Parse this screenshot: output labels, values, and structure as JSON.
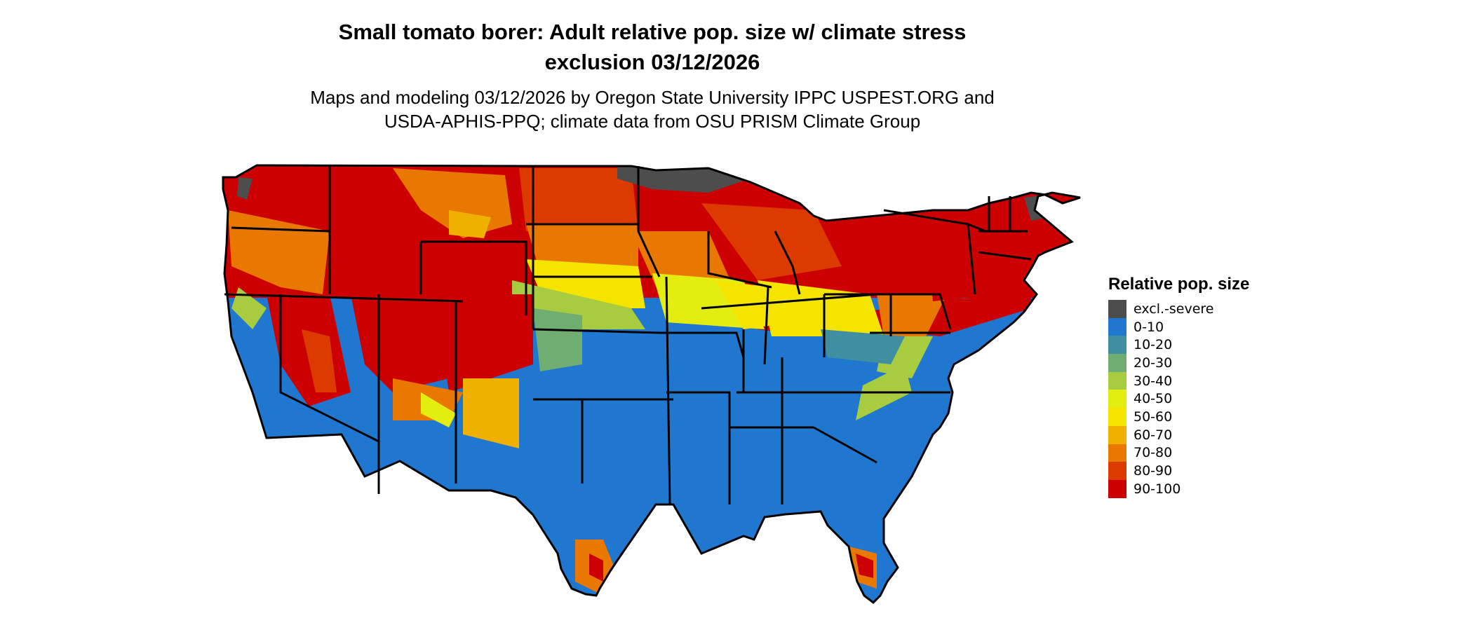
{
  "title_line1": "Small tomato borer: Adult relative pop. size w/ climate stress",
  "title_line2": "exclusion 03/12/2026",
  "subtitle_line1": "Maps and modeling 03/12/2026 by Oregon State University IPPC USPEST.ORG and",
  "subtitle_line2": "USDA-APHIS-PPQ; climate data from OSU PRISM Climate Group",
  "legend": {
    "title": "Relative pop. size",
    "items": [
      {
        "label": "excl.-severe",
        "color": "#4d4d4d"
      },
      {
        "label": "0-10",
        "color": "#1f77d0"
      },
      {
        "label": "10-20",
        "color": "#3f8fa0"
      },
      {
        "label": "20-30",
        "color": "#6fad70"
      },
      {
        "label": "30-40",
        "color": "#a8cc40"
      },
      {
        "label": "40-50",
        "color": "#e3ee10"
      },
      {
        "label": "50-60",
        "color": "#f5e400"
      },
      {
        "label": "60-70",
        "color": "#f0b000"
      },
      {
        "label": "70-80",
        "color": "#e87800"
      },
      {
        "label": "80-90",
        "color": "#dd3a00"
      },
      {
        "label": "90-100",
        "color": "#cc0000"
      }
    ]
  }
}
